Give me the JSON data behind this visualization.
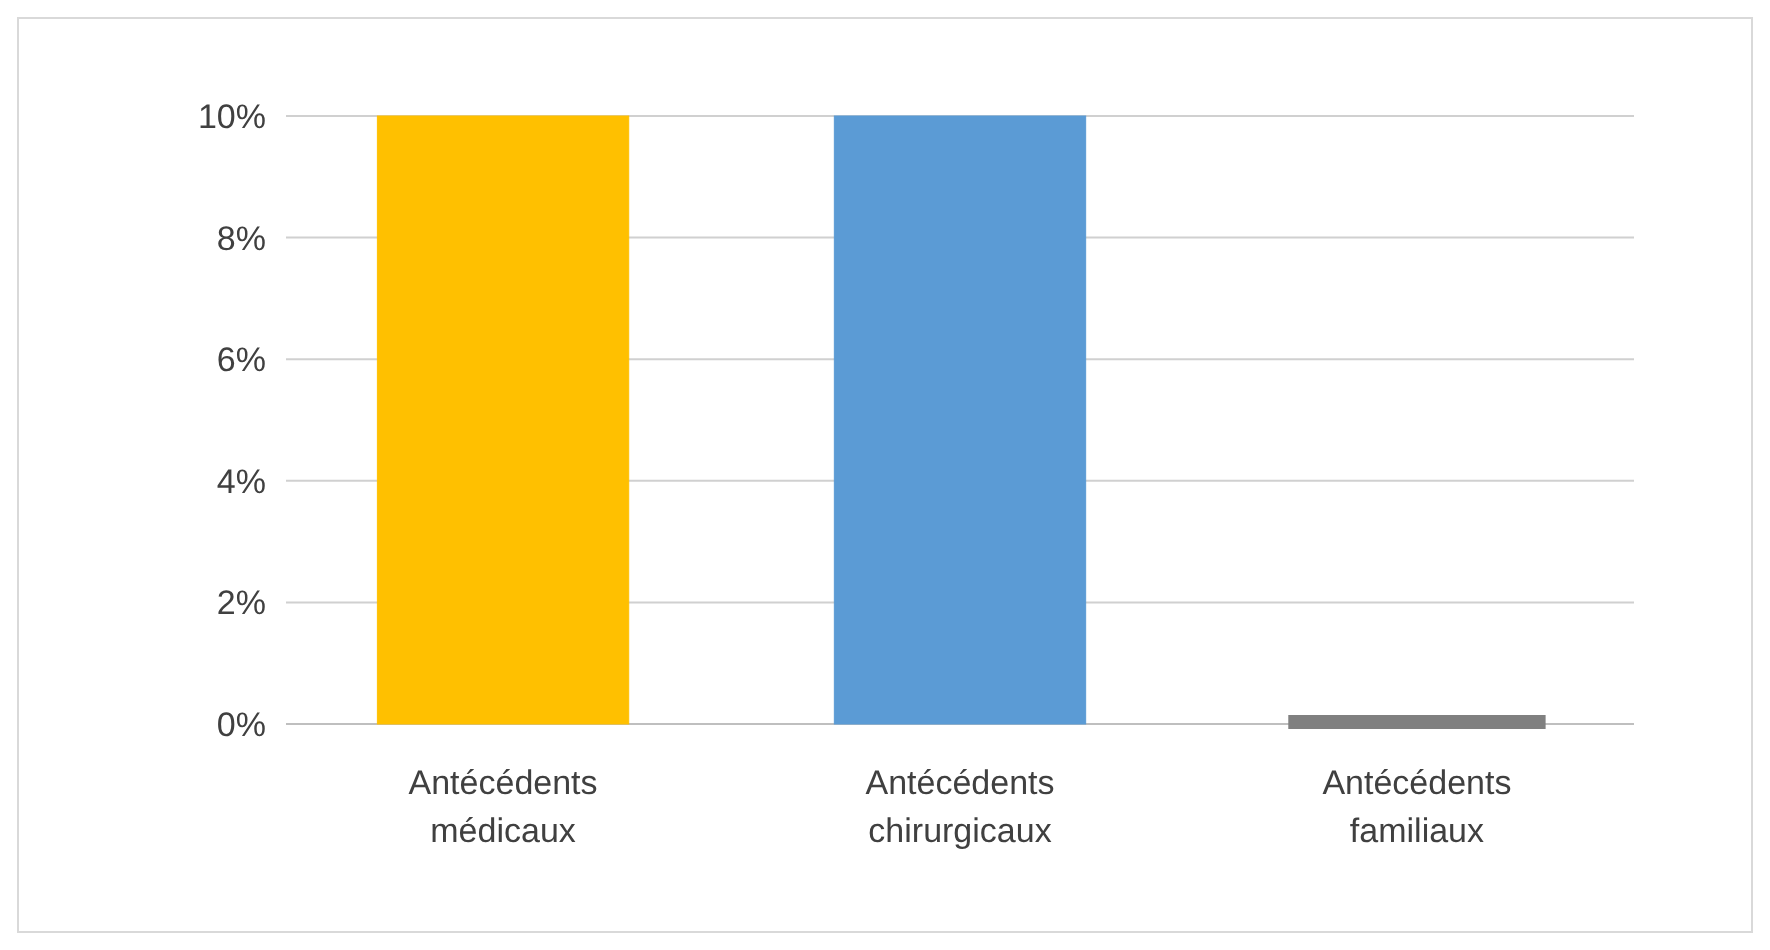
{
  "chart_data": {
    "type": "bar",
    "categories": [
      "Antécédents médicaux",
      "Antécédents chirurgicaux",
      "Antécédents familiaux"
    ],
    "values": [
      10,
      10,
      0
    ],
    "colors": [
      "#ffc000",
      "#5b9bd5",
      "#808080"
    ],
    "ylim": [
      0,
      10
    ],
    "yticks": [
      {
        "value": 0,
        "label": "0%"
      },
      {
        "value": 2,
        "label": "2%"
      },
      {
        "value": 4,
        "label": "4%"
      },
      {
        "value": 6,
        "label": "6%"
      },
      {
        "value": 8,
        "label": "8%"
      },
      {
        "value": 10,
        "label": "10%"
      }
    ],
    "grid": "y"
  }
}
